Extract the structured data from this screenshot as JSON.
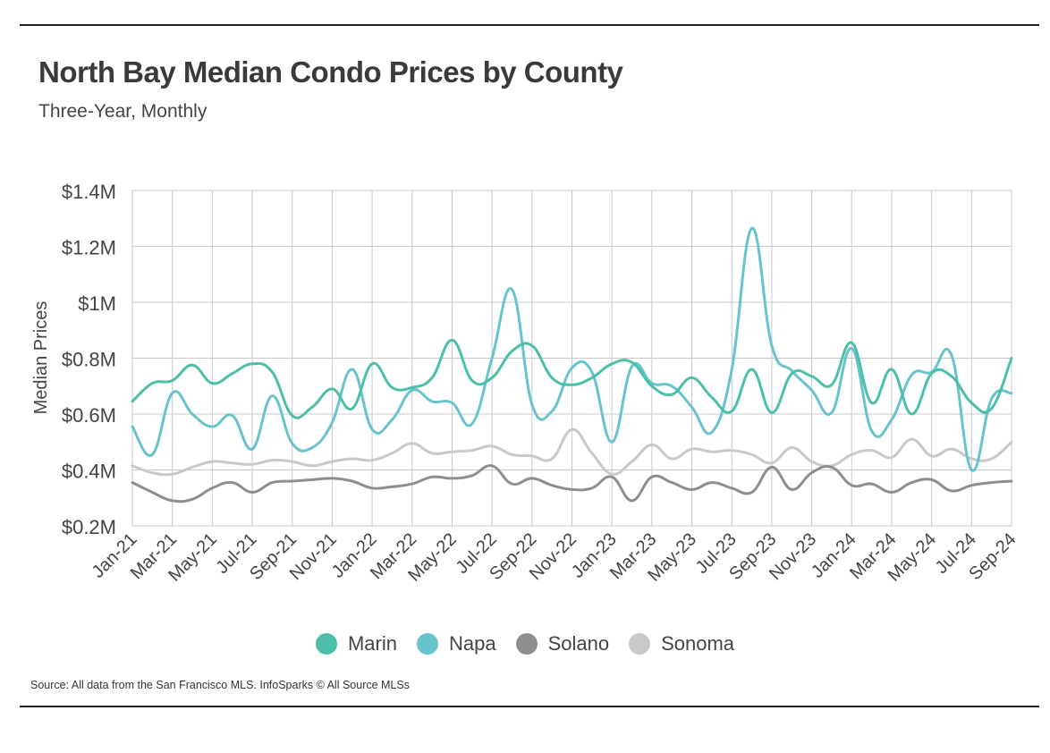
{
  "header": {
    "title": "North Bay Median Condo Prices by County",
    "subtitle": "Three-Year, Monthly"
  },
  "source": "Source:  All data from the San Francisco MLS. InfoSparks © All Source MLSs",
  "chart_data": {
    "type": "line",
    "title": "North Bay Median Condo Prices by County",
    "subtitle": "Three-Year, Monthly",
    "ylabel": "Median Prices",
    "xlabel": "",
    "ylim": [
      200000,
      1400000
    ],
    "ytick_values": [
      200000,
      400000,
      600000,
      800000,
      1000000,
      1200000,
      1400000
    ],
    "ytick_labels": [
      "$0.2M",
      "$0.4M",
      "$0.6M",
      "$0.8M",
      "$1M",
      "$1.2M",
      "$1.4M"
    ],
    "x": [
      "Jan-21",
      "Feb-21",
      "Mar-21",
      "Apr-21",
      "May-21",
      "Jun-21",
      "Jul-21",
      "Aug-21",
      "Sep-21",
      "Oct-21",
      "Nov-21",
      "Dec-21",
      "Jan-22",
      "Feb-22",
      "Mar-22",
      "Apr-22",
      "May-22",
      "Jun-22",
      "Jul-22",
      "Aug-22",
      "Sep-22",
      "Oct-22",
      "Nov-22",
      "Dec-22",
      "Jan-23",
      "Feb-23",
      "Mar-23",
      "Apr-23",
      "May-23",
      "Jun-23",
      "Jul-23",
      "Aug-23",
      "Sep-23",
      "Oct-23",
      "Nov-23",
      "Dec-23",
      "Jan-24",
      "Feb-24",
      "Mar-24",
      "Apr-24",
      "May-24",
      "Jun-24",
      "Jul-24",
      "Aug-24",
      "Sep-24"
    ],
    "xtick_labels": [
      "Jan-21",
      "Mar-21",
      "May-21",
      "Jul-21",
      "Sep-21",
      "Nov-21",
      "Jan-22",
      "Mar-22",
      "May-22",
      "Jul-22",
      "Sep-22",
      "Nov-22",
      "Jan-23",
      "Mar-23",
      "May-23",
      "Jul-23",
      "Sep-23",
      "Nov-23",
      "Jan-24",
      "Mar-24",
      "May-24",
      "Jul-24",
      "Sep-24"
    ],
    "grid": true,
    "legend_position": "bottom",
    "series": [
      {
        "name": "Marin",
        "color": "#4dbfa8",
        "values": [
          645000,
          710000,
          720000,
          775000,
          710000,
          745000,
          780000,
          750000,
          595000,
          625000,
          690000,
          620000,
          780000,
          695000,
          695000,
          730000,
          865000,
          720000,
          730000,
          825000,
          845000,
          730000,
          705000,
          730000,
          780000,
          785000,
          700000,
          670000,
          730000,
          660000,
          610000,
          760000,
          605000,
          745000,
          735000,
          705000,
          855000,
          640000,
          760000,
          600000,
          745000,
          735000,
          640000,
          620000,
          800000
        ]
      },
      {
        "name": "Napa",
        "color": "#67c3cc",
        "values": [
          555000,
          455000,
          675000,
          600000,
          555000,
          595000,
          475000,
          665000,
          495000,
          480000,
          570000,
          760000,
          545000,
          580000,
          685000,
          645000,
          640000,
          565000,
          800000,
          1045000,
          635000,
          610000,
          765000,
          750000,
          500000,
          770000,
          710000,
          700000,
          625000,
          535000,
          760000,
          1265000,
          845000,
          755000,
          685000,
          605000,
          835000,
          540000,
          580000,
          740000,
          750000,
          810000,
          400000,
          655000,
          675000
        ]
      },
      {
        "name": "Solano",
        "color": "#8e8e8e",
        "values": [
          355000,
          320000,
          290000,
          295000,
          335000,
          355000,
          320000,
          355000,
          360000,
          365000,
          370000,
          360000,
          335000,
          340000,
          350000,
          375000,
          370000,
          380000,
          415000,
          350000,
          370000,
          345000,
          330000,
          335000,
          375000,
          290000,
          375000,
          355000,
          330000,
          355000,
          335000,
          320000,
          410000,
          330000,
          390000,
          410000,
          345000,
          350000,
          320000,
          355000,
          365000,
          325000,
          345000,
          355000,
          360000
        ]
      },
      {
        "name": "Sonoma",
        "color": "#c9c9c9",
        "values": [
          415000,
          390000,
          385000,
          410000,
          430000,
          425000,
          420000,
          435000,
          430000,
          415000,
          430000,
          440000,
          435000,
          460000,
          495000,
          460000,
          465000,
          470000,
          485000,
          455000,
          450000,
          440000,
          545000,
          460000,
          385000,
          430000,
          490000,
          440000,
          475000,
          465000,
          470000,
          455000,
          425000,
          480000,
          430000,
          415000,
          455000,
          470000,
          445000,
          510000,
          450000,
          475000,
          440000,
          440000,
          500000
        ]
      }
    ]
  }
}
